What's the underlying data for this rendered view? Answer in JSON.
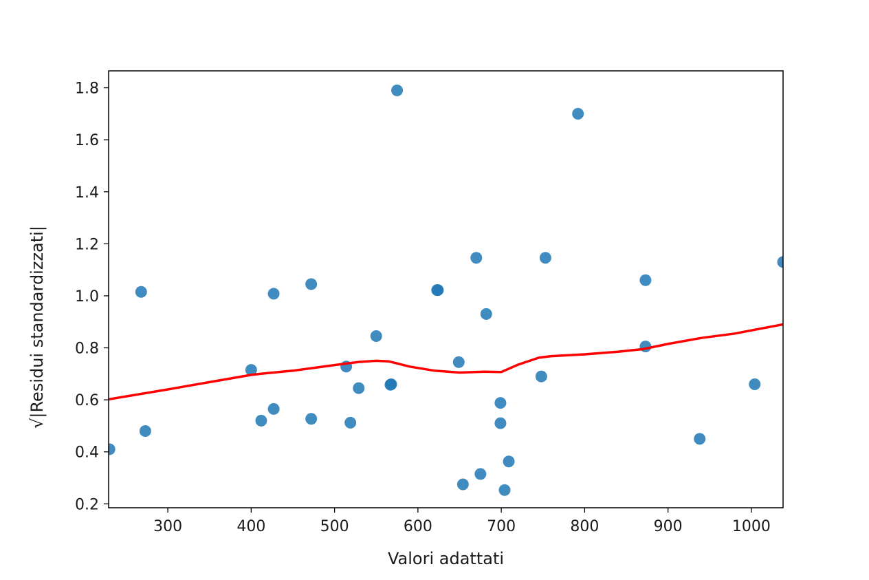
{
  "chart_data": {
    "type": "scatter",
    "title": "",
    "xlabel": "Valori adattati",
    "ylabel": "√|Residui standardizzati|",
    "xlim": [
      229,
      1038
    ],
    "ylim": [
      0.185,
      1.865
    ],
    "xticks": [
      300,
      400,
      500,
      600,
      700,
      800,
      900,
      1000
    ],
    "yticks": [
      0.2,
      0.4,
      0.6,
      0.8,
      1.0,
      1.2,
      1.4,
      1.6,
      1.8
    ],
    "ytick_labels": [
      "0.2",
      "0.4",
      "0.6",
      "0.8",
      "1.0",
      "1.2",
      "1.4",
      "1.6",
      "1.8"
    ],
    "grid": false,
    "point_color": "#1f77b4",
    "line_color": "#ff0000",
    "points": [
      {
        "x": 230,
        "y": 0.41
      },
      {
        "x": 268,
        "y": 1.015
      },
      {
        "x": 273,
        "y": 0.48
      },
      {
        "x": 400,
        "y": 0.715
      },
      {
        "x": 412,
        "y": 0.52
      },
      {
        "x": 427,
        "y": 1.008
      },
      {
        "x": 427,
        "y": 0.565
      },
      {
        "x": 472,
        "y": 1.045
      },
      {
        "x": 472,
        "y": 0.527
      },
      {
        "x": 514,
        "y": 0.728
      },
      {
        "x": 519,
        "y": 0.512
      },
      {
        "x": 529,
        "y": 0.645
      },
      {
        "x": 550,
        "y": 0.845
      },
      {
        "x": 567,
        "y": 0.658
      },
      {
        "x": 568,
        "y": 0.66
      },
      {
        "x": 575,
        "y": 1.79
      },
      {
        "x": 623,
        "y": 1.022
      },
      {
        "x": 624,
        "y": 1.022
      },
      {
        "x": 649,
        "y": 0.745
      },
      {
        "x": 654,
        "y": 0.275
      },
      {
        "x": 670,
        "y": 1.146
      },
      {
        "x": 675,
        "y": 0.315
      },
      {
        "x": 682,
        "y": 0.93
      },
      {
        "x": 699,
        "y": 0.588
      },
      {
        "x": 699,
        "y": 0.51
      },
      {
        "x": 704,
        "y": 0.253
      },
      {
        "x": 709,
        "y": 0.363
      },
      {
        "x": 748,
        "y": 0.69
      },
      {
        "x": 753,
        "y": 1.146
      },
      {
        "x": 792,
        "y": 1.7
      },
      {
        "x": 873,
        "y": 1.06
      },
      {
        "x": 873,
        "y": 0.805
      },
      {
        "x": 938,
        "y": 0.45
      },
      {
        "x": 1004,
        "y": 0.66
      },
      {
        "x": 1038,
        "y": 1.13
      }
    ],
    "smooth_line": [
      {
        "x": 229,
        "y": 0.602
      },
      {
        "x": 300,
        "y": 0.64
      },
      {
        "x": 350,
        "y": 0.668
      },
      {
        "x": 400,
        "y": 0.696
      },
      {
        "x": 420,
        "y": 0.703
      },
      {
        "x": 450,
        "y": 0.712
      },
      {
        "x": 480,
        "y": 0.725
      },
      {
        "x": 510,
        "y": 0.738
      },
      {
        "x": 530,
        "y": 0.746
      },
      {
        "x": 550,
        "y": 0.75
      },
      {
        "x": 565,
        "y": 0.748
      },
      {
        "x": 590,
        "y": 0.728
      },
      {
        "x": 620,
        "y": 0.712
      },
      {
        "x": 650,
        "y": 0.705
      },
      {
        "x": 680,
        "y": 0.708
      },
      {
        "x": 700,
        "y": 0.707
      },
      {
        "x": 720,
        "y": 0.735
      },
      {
        "x": 745,
        "y": 0.762
      },
      {
        "x": 760,
        "y": 0.768
      },
      {
        "x": 800,
        "y": 0.775
      },
      {
        "x": 840,
        "y": 0.785
      },
      {
        "x": 870,
        "y": 0.795
      },
      {
        "x": 900,
        "y": 0.815
      },
      {
        "x": 940,
        "y": 0.838
      },
      {
        "x": 980,
        "y": 0.855
      },
      {
        "x": 1038,
        "y": 0.89
      }
    ]
  }
}
